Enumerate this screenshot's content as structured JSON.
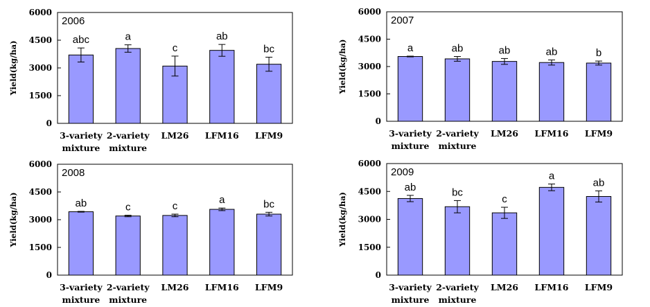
{
  "chart_data": [
    {
      "type": "bar",
      "title": "2006",
      "ylabel": "Yield(kg/ha)",
      "ylim": [
        0,
        6000
      ],
      "yticks": [
        "0",
        "1500",
        "3000",
        "4500",
        "6000"
      ],
      "categories": [
        [
          "3-variety",
          "mixture"
        ],
        [
          "2-variety",
          "mixture"
        ],
        [
          "LM26"
        ],
        [
          "LFM16"
        ],
        [
          "LFM9"
        ]
      ],
      "values": [
        3700,
        4050,
        3100,
        3950,
        3200
      ],
      "errors": [
        380,
        200,
        540,
        320,
        380
      ],
      "labels": [
        "abc",
        "a",
        "c",
        "ab",
        "bc"
      ],
      "bar_color": "#9999ff"
    },
    {
      "type": "bar",
      "title": "2007",
      "ylabel": "Yield(kg/ha)",
      "ylim": [
        0,
        6000
      ],
      "yticks": [
        "0",
        "1500",
        "3000",
        "4500",
        "6000"
      ],
      "categories": [
        [
          "3-variety",
          "mixture"
        ],
        [
          "2-variety",
          "mixture"
        ],
        [
          "LM26"
        ],
        [
          "LFM16"
        ],
        [
          "LFM9"
        ]
      ],
      "values": [
        3550,
        3420,
        3280,
        3220,
        3190
      ],
      "errors": [
        20,
        130,
        160,
        140,
        110
      ],
      "labels": [
        "a",
        "ab",
        "ab",
        "ab",
        "b"
      ],
      "bar_color": "#9999ff"
    },
    {
      "type": "bar",
      "title": "2008",
      "ylabel": "Yield(kg/ha)",
      "ylim": [
        0,
        6000
      ],
      "yticks": [
        "0",
        "1500",
        "3000",
        "4500",
        "6000"
      ],
      "categories": [
        [
          "3-variety",
          "mixture"
        ],
        [
          "2-variety",
          "mixture"
        ],
        [
          "LM26"
        ],
        [
          "LFM16"
        ],
        [
          "LFM9"
        ]
      ],
      "values": [
        3430,
        3200,
        3230,
        3560,
        3300
      ],
      "errors": [
        20,
        40,
        70,
        70,
        100
      ],
      "labels": [
        "ab",
        "c",
        "c",
        "a",
        "bc"
      ],
      "bar_color": "#9999ff"
    },
    {
      "type": "bar",
      "title": "2009",
      "ylabel": "Yield(kg/ha)",
      "ylim": [
        0,
        6000
      ],
      "yticks": [
        "0",
        "1500",
        "3000",
        "4500",
        "6000"
      ],
      "categories": [
        [
          "3-variety",
          "mixture"
        ],
        [
          "2-variety",
          "mixture"
        ],
        [
          "LM26"
        ],
        [
          "LFM16"
        ],
        [
          "LFM9"
        ]
      ],
      "values": [
        4120,
        3680,
        3350,
        4720,
        4230
      ],
      "errors": [
        170,
        330,
        300,
        180,
        300
      ],
      "labels": [
        "ab",
        "bc",
        "c",
        "a",
        "ab"
      ],
      "bar_color": "#9999ff"
    }
  ]
}
